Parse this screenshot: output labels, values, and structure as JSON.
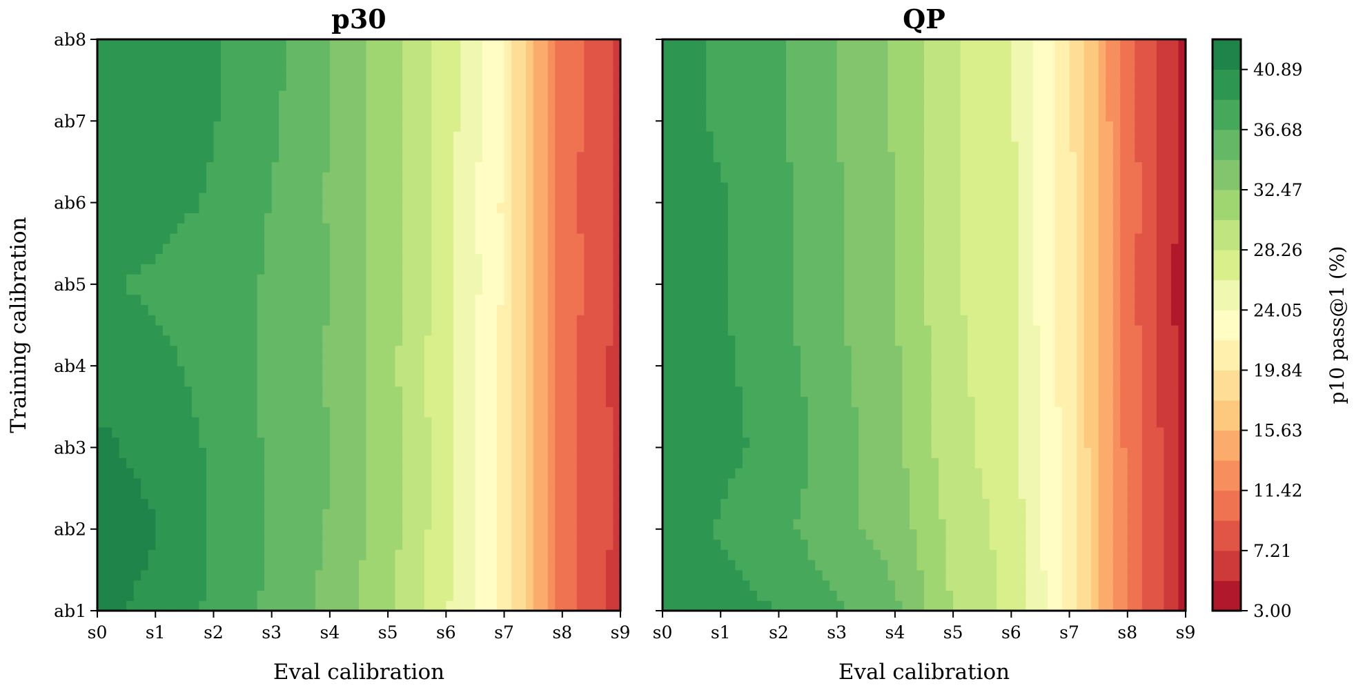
{
  "chart_data": {
    "type": "heatmap",
    "subtype": "filled-contour",
    "colormap": "RdYlGn",
    "shared_y": true,
    "x_categories": [
      "s0",
      "s1",
      "s2",
      "s3",
      "s4",
      "s5",
      "s6",
      "s7",
      "s8",
      "s9"
    ],
    "y_categories": [
      "ab1",
      "ab2",
      "ab3",
      "ab4",
      "ab5",
      "ab6",
      "ab7",
      "ab8"
    ],
    "xlabel": "Eval calibration",
    "ylabel": "Training calibration",
    "panels": [
      {
        "title": "p30",
        "z": [
          [
            41.6,
            40.2,
            38.4,
            36.2,
            33.9,
            30.8,
            26.4,
            21.2,
            10.2,
            6.4
          ],
          [
            42.4,
            41.0,
            38.6,
            36.5,
            34.4,
            31.3,
            26.9,
            21.4,
            10.5,
            6.5
          ],
          [
            41.4,
            40.1,
            38.5,
            36.3,
            34.6,
            31.4,
            27.0,
            21.5,
            10.6,
            6.5
          ],
          [
            40.0,
            39.3,
            38.1,
            36.2,
            34.3,
            31.1,
            26.7,
            21.3,
            10.4,
            6.4
          ],
          [
            39.0,
            38.5,
            37.7,
            36.4,
            34.6,
            31.4,
            27.2,
            21.7,
            10.7,
            6.6
          ],
          [
            39.9,
            39.4,
            38.6,
            36.6,
            34.4,
            31.3,
            27.0,
            21.6,
            10.5,
            6.5
          ],
          [
            40.2,
            39.6,
            38.9,
            37.1,
            34.5,
            31.4,
            27.2,
            21.8,
            10.6,
            6.6
          ],
          [
            40.3,
            39.7,
            39.1,
            37.3,
            34.6,
            31.5,
            27.3,
            21.9,
            10.7,
            6.7
          ]
        ]
      },
      {
        "title": "QP",
        "z": [
          [
            40.6,
            39.8,
            38.7,
            37.1,
            35.0,
            30.2,
            27.8,
            21.3,
            11.0,
            4.5
          ],
          [
            40.9,
            38.5,
            37.3,
            35.2,
            33.7,
            29.7,
            27.5,
            21.2,
            11.0,
            4.5
          ],
          [
            40.9,
            39.4,
            38.1,
            35.5,
            33.1,
            29.0,
            27.0,
            20.9,
            10.8,
            4.5
          ],
          [
            40.8,
            39.2,
            37.6,
            35.1,
            32.8,
            28.8,
            26.9,
            20.7,
            10.6,
            4.3
          ],
          [
            40.9,
            38.9,
            37.1,
            34.8,
            32.4,
            28.5,
            26.6,
            20.5,
            10.5,
            3.5
          ],
          [
            40.9,
            39.1,
            37.4,
            34.9,
            32.6,
            28.6,
            26.7,
            20.6,
            10.6,
            4.2
          ],
          [
            40.9,
            38.2,
            36.9,
            34.5,
            32.2,
            28.4,
            26.5,
            20.4,
            10.4,
            4.1
          ],
          [
            40.9,
            38.3,
            36.9,
            34.5,
            32.2,
            28.4,
            26.5,
            20.4,
            10.4,
            4.1
          ]
        ]
      }
    ],
    "colorbar": {
      "label": "p10 pass@1 (%)",
      "min": 3.0,
      "max": 43.0,
      "levels": 19,
      "tick_labels": [
        "3.00",
        "7.21",
        "11.42",
        "15.63",
        "19.84",
        "24.05",
        "28.26",
        "32.47",
        "36.68",
        "40.89"
      ],
      "colors": [
        "#b2182b",
        "#ce3939",
        "#e05546",
        "#ef7251",
        "#f68f5d",
        "#fbac6c",
        "#fdc97f",
        "#fede97",
        "#fff0ad",
        "#fffcc4",
        "#f0f7b1",
        "#d9ef8b",
        "#bfe480",
        "#a0d672",
        "#83c56c",
        "#65b865",
        "#46a85b",
        "#2d9650",
        "#1e8449"
      ]
    }
  }
}
